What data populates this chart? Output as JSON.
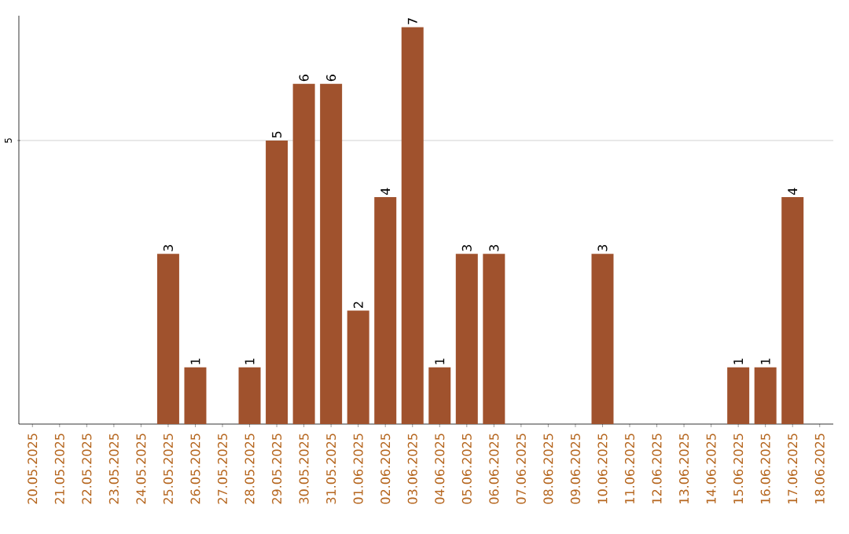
{
  "chart_data": {
    "type": "bar",
    "categories": [
      "20.05.2025",
      "21.05.2025",
      "22.05.2025",
      "23.05.2025",
      "24.05.2025",
      "25.05.2025",
      "26.05.2025",
      "27.05.2025",
      "28.05.2025",
      "29.05.2025",
      "30.05.2025",
      "31.05.2025",
      "01.06.2025",
      "02.06.2025",
      "03.06.2025",
      "04.06.2025",
      "05.06.2025",
      "06.06.2025",
      "07.06.2025",
      "08.06.2025",
      "09.06.2025",
      "10.06.2025",
      "11.06.2025",
      "12.06.2025",
      "13.06.2025",
      "14.06.2025",
      "15.06.2025",
      "16.06.2025",
      "17.06.2025",
      "18.06.2025"
    ],
    "values": [
      0,
      0,
      0,
      0,
      0,
      3,
      1,
      0,
      1,
      5,
      6,
      6,
      2,
      4,
      7,
      1,
      3,
      3,
      0,
      0,
      0,
      3,
      0,
      0,
      0,
      0,
      1,
      1,
      4,
      0
    ],
    "value_labels": [
      null,
      null,
      null,
      null,
      null,
      "3",
      "1",
      null,
      "1",
      "5",
      "6",
      "6",
      "2",
      "4",
      "7",
      "1",
      "3",
      "3",
      null,
      null,
      null,
      "3",
      null,
      null,
      null,
      null,
      "1",
      "1",
      "4",
      null
    ],
    "color": "#a0522d",
    "ylim": [
      0,
      7.2
    ],
    "yticks": [
      5
    ],
    "grid": "y"
  }
}
